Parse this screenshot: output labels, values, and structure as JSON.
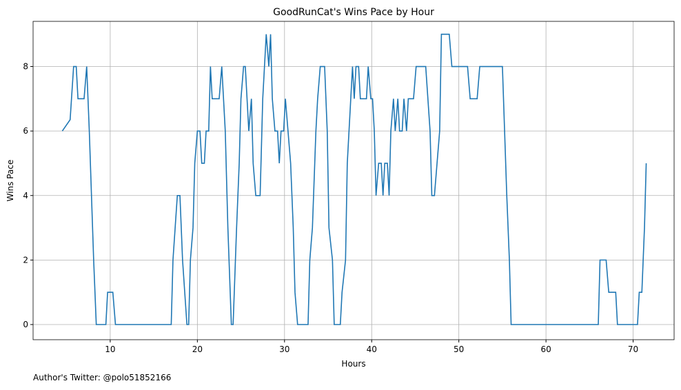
{
  "chart_data": {
    "type": "line",
    "title": "GoodRunCat's Wins Pace by Hour",
    "xlabel": "Hours",
    "ylabel": "Wins Pace",
    "footer": "Author's Twitter: @polo51852166",
    "x": [
      4.5,
      5.4,
      5.8,
      6.1,
      6.3,
      7.0,
      7.3,
      7.6,
      8.1,
      8.4,
      9.5,
      9.7,
      10.3,
      10.6,
      17.0,
      17.2,
      17.7,
      18.0,
      18.3,
      18.8,
      19.0,
      19.2,
      19.5,
      19.7,
      20.0,
      20.3,
      20.5,
      20.8,
      21.0,
      21.3,
      21.5,
      21.7,
      22.5,
      22.8,
      23.2,
      23.5,
      23.9,
      24.1,
      24.5,
      24.8,
      25.0,
      25.3,
      25.5,
      25.9,
      26.2,
      26.4,
      26.7,
      27.2,
      27.5,
      27.7,
      27.9,
      28.2,
      28.4,
      28.6,
      28.9,
      29.2,
      29.4,
      29.6,
      29.9,
      30.1,
      30.4,
      30.7,
      31.0,
      31.2,
      31.5,
      32.7,
      32.9,
      33.2,
      33.6,
      33.8,
      34.1,
      34.6,
      34.9,
      35.1,
      35.5,
      35.7,
      36.4,
      36.6,
      37.0,
      37.2,
      37.6,
      37.8,
      38.0,
      38.2,
      38.5,
      38.7,
      39.4,
      39.6,
      39.9,
      40.1,
      40.3,
      40.5,
      40.8,
      41.1,
      41.3,
      41.5,
      41.8,
      42.0,
      42.2,
      42.5,
      42.7,
      43.0,
      43.2,
      43.5,
      43.7,
      44.0,
      44.2,
      44.8,
      45.1,
      46.2,
      46.7,
      46.9,
      47.2,
      47.5,
      47.8,
      48.0,
      48.9,
      49.2,
      51.0,
      51.3,
      52.1,
      52.4,
      55.0,
      55.5,
      55.8,
      56.0,
      66.0,
      66.2,
      66.9,
      67.2,
      68.0,
      68.2,
      70.5,
      70.7,
      71.0,
      71.3,
      71.5
    ],
    "series": [
      {
        "name": "Wins Pace",
        "color": "#1f77b4",
        "values": [
          6,
          6.35,
          8,
          8,
          7,
          7,
          8,
          6,
          2,
          0,
          0,
          1,
          1,
          0,
          0,
          2,
          4,
          4,
          2,
          0,
          0,
          2,
          3,
          5,
          6,
          6,
          5,
          5,
          6,
          6,
          8,
          7,
          7,
          8,
          6,
          3,
          0,
          0,
          3,
          5,
          7,
          8,
          8,
          6,
          7,
          5,
          4,
          4,
          7,
          8,
          9,
          8,
          9,
          7,
          6,
          6,
          5,
          6,
          6,
          7,
          6,
          5,
          3,
          1,
          0,
          0,
          2,
          3,
          6,
          7,
          8,
          8,
          6,
          3,
          2,
          0,
          0,
          1,
          2,
          5,
          7,
          8,
          7,
          8,
          8,
          7,
          7,
          8,
          7,
          7,
          6,
          4,
          5,
          5,
          4,
          5,
          5,
          4,
          6,
          7,
          6,
          7,
          6,
          6,
          7,
          6,
          7,
          7,
          8,
          8,
          6,
          4,
          4,
          5,
          6,
          9,
          9,
          8,
          8,
          7,
          7,
          8,
          8,
          4,
          2,
          0,
          0,
          2,
          2,
          1,
          1,
          0,
          0,
          1,
          1,
          3,
          5
        ]
      }
    ],
    "xlim": [
      1.15,
      74.7
    ],
    "ylim": [
      -0.47,
      9.4
    ],
    "xticks": [
      10,
      20,
      30,
      40,
      50,
      60,
      70
    ],
    "yticks": [
      0,
      2,
      4,
      6,
      8
    ],
    "grid": true
  }
}
